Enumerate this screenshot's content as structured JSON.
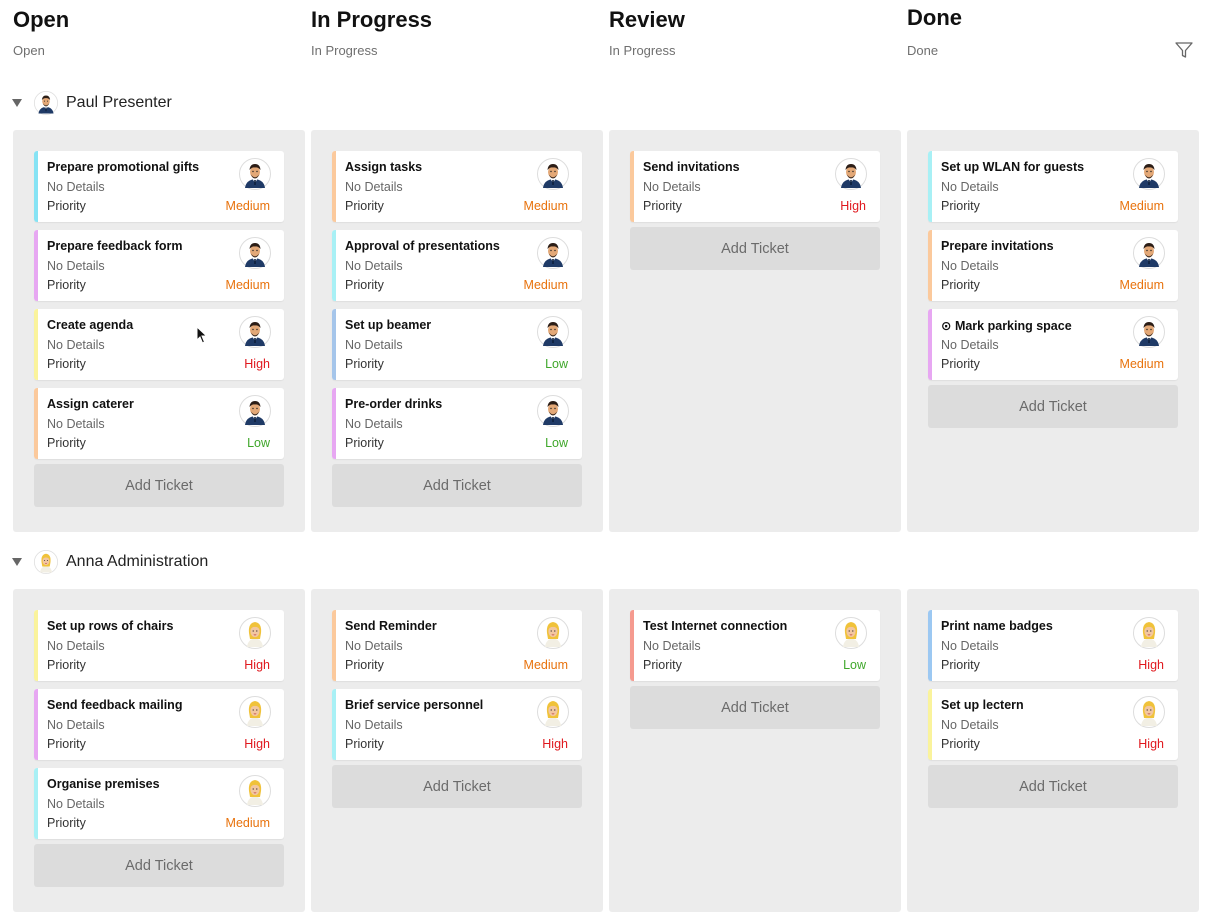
{
  "columns": [
    {
      "title": "Open",
      "subtitle": "Open"
    },
    {
      "title": "In Progress",
      "subtitle": "In Progress"
    },
    {
      "title": "Review",
      "subtitle": "In Progress"
    },
    {
      "title": "Done",
      "subtitle": "Done"
    }
  ],
  "add_ticket_label": "Add Ticket",
  "details_text": "No Details",
  "priority_label": "Priority",
  "priority_colors": {
    "Medium": "#e8720c",
    "High": "#e0181e",
    "Low": "#3fa72a"
  },
  "icons": {
    "filter": "filter-icon",
    "caret": "caret-down-icon",
    "avatar": "avatar-icon"
  },
  "groups": [
    {
      "name": "Paul Presenter",
      "avatar": "man",
      "lanes": [
        [
          {
            "title": "Prepare promotional gifts",
            "priority": "Medium",
            "color": "#86e3f4"
          },
          {
            "title": "Prepare feedback form",
            "priority": "Medium",
            "color": "#e7a7f2"
          },
          {
            "title": "Create agenda",
            "priority": "High",
            "color": "#faf39c"
          },
          {
            "title": "Assign caterer",
            "priority": "Low",
            "color": "#fbc99c"
          }
        ],
        [
          {
            "title": "Assign tasks",
            "priority": "Medium",
            "color": "#fbc99c"
          },
          {
            "title": "Approval of presentations",
            "priority": "Medium",
            "color": "#a8f0f5"
          },
          {
            "title": "Set up beamer",
            "priority": "Low",
            "color": "#a5c5ea"
          },
          {
            "title": "Pre-order drinks",
            "priority": "Low",
            "color": "#e7a7f2"
          }
        ],
        [
          {
            "title": "Send invitations",
            "priority": "High",
            "color": "#fbc99c"
          }
        ],
        [
          {
            "title": "Set up WLAN for guests",
            "priority": "Medium",
            "color": "#a8f0f5"
          },
          {
            "title": "Prepare invitations",
            "priority": "Medium",
            "color": "#fbc99c"
          },
          {
            "title": "⊙ Mark parking space",
            "priority": "Medium",
            "color": "#e7a7f2"
          }
        ]
      ]
    },
    {
      "name": "Anna Administration",
      "avatar": "woman",
      "lanes": [
        [
          {
            "title": "Set up rows of chairs",
            "priority": "High",
            "color": "#faf39c"
          },
          {
            "title": "Send feedback mailing",
            "priority": "High",
            "color": "#e7a7f2"
          },
          {
            "title": "Organise premises",
            "priority": "Medium",
            "color": "#a8f0f5"
          }
        ],
        [
          {
            "title": "Send Reminder",
            "priority": "Medium",
            "color": "#fbc99c"
          },
          {
            "title": "Brief service personnel",
            "priority": "High",
            "color": "#a8f0f5"
          }
        ],
        [
          {
            "title": "Test Internet connection",
            "priority": "Low",
            "color": "#f59a8f"
          }
        ],
        [
          {
            "title": "Print name badges",
            "priority": "High",
            "color": "#9cc8f2"
          },
          {
            "title": "Set up lectern",
            "priority": "High",
            "color": "#faf39c"
          }
        ]
      ]
    }
  ]
}
